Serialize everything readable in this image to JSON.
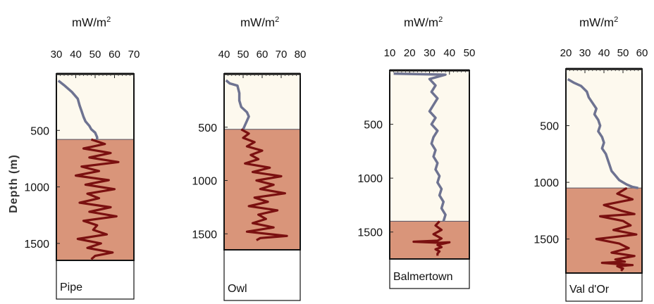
{
  "figure": {
    "y_axis_label": "Depth (m)",
    "unit": "mW/m",
    "unit_exp": "2"
  },
  "chart_data": [
    {
      "type": "line",
      "site": "Pipe",
      "xlabel": "mW/m2",
      "xlim": [
        30,
        70
      ],
      "xticks": [
        30,
        40,
        50,
        60,
        70
      ],
      "ylim": [
        0,
        1650
      ],
      "yticks": [
        500,
        1000,
        1500
      ],
      "y_inverted": true,
      "layer_boundary_depth": 580,
      "upper_series": {
        "x": [
          31,
          34,
          38,
          41,
          42,
          43,
          44,
          45,
          47,
          48,
          50,
          51,
          51
        ],
        "y": [
          60,
          100,
          160,
          220,
          280,
          330,
          380,
          420,
          460,
          490,
          520,
          560,
          580
        ]
      },
      "lower_series": {
        "x": [
          48,
          55,
          44,
          58,
          47,
          62,
          43,
          52,
          40,
          57,
          45,
          60,
          46,
          52,
          42,
          58,
          47,
          61,
          44,
          51,
          49,
          56,
          41,
          53,
          46,
          59,
          50,
          48
        ],
        "y": [
          580,
          620,
          660,
          700,
          740,
          780,
          820,
          860,
          900,
          940,
          980,
          1020,
          1060,
          1100,
          1140,
          1180,
          1220,
          1260,
          1300,
          1340,
          1380,
          1420,
          1460,
          1500,
          1540,
          1580,
          1610,
          1640
        ]
      },
      "colors": {
        "upper": "#6e7391",
        "lower": "#7a1010"
      }
    },
    {
      "type": "line",
      "site": "Owl",
      "xlabel": "mW/m2",
      "xlim": [
        40,
        80
      ],
      "xticks": [
        40,
        50,
        60,
        70,
        80
      ],
      "ylim": [
        0,
        1650
      ],
      "yticks": [
        500,
        1000,
        1500
      ],
      "y_inverted": true,
      "layer_boundary_depth": 520,
      "upper_series": {
        "x": [
          41,
          43,
          47,
          48,
          48,
          49,
          52,
          53,
          52,
          51,
          50
        ],
        "y": [
          60,
          90,
          110,
          180,
          250,
          310,
          360,
          400,
          440,
          480,
          520
        ]
      },
      "lower_series": {
        "x": [
          49,
          53,
          50,
          56,
          52,
          60,
          54,
          58,
          51,
          64,
          55,
          70,
          57,
          66,
          59,
          72,
          56,
          63,
          53,
          68,
          58,
          62,
          55,
          66,
          52,
          73,
          59,
          57
        ],
        "y": [
          520,
          560,
          600,
          640,
          680,
          720,
          760,
          800,
          840,
          880,
          920,
          960,
          1000,
          1040,
          1080,
          1120,
          1160,
          1200,
          1240,
          1280,
          1320,
          1360,
          1400,
          1440,
          1480,
          1520,
          1540,
          1560
        ]
      },
      "colors": {
        "upper": "#6e7391",
        "lower": "#7a1010"
      }
    },
    {
      "type": "line",
      "site": "Balmertown",
      "xlabel": "mW/m2",
      "xlim": [
        10,
        50
      ],
      "xticks": [
        10,
        20,
        30,
        40,
        50
      ],
      "ylim": [
        0,
        1750
      ],
      "yticks": [
        500,
        1000,
        1500
      ],
      "y_inverted": true,
      "layer_boundary_depth": 1400,
      "upper_series": {
        "x": [
          12,
          38,
          30,
          33,
          31,
          34,
          32,
          30,
          33,
          31,
          34,
          32,
          31,
          33,
          32,
          34,
          33,
          35,
          34,
          36,
          35,
          37,
          36,
          38,
          37
        ],
        "y": [
          30,
          40,
          80,
          140,
          200,
          260,
          320,
          380,
          440,
          500,
          560,
          620,
          680,
          740,
          800,
          860,
          920,
          980,
          1040,
          1100,
          1160,
          1220,
          1280,
          1340,
          1400
        ]
      },
      "lower_series": {
        "x": [
          35,
          33,
          36,
          32,
          36,
          34,
          22,
          35,
          40,
          34,
          36,
          33,
          35,
          34,
          34
        ],
        "y": [
          1400,
          1440,
          1480,
          1520,
          1560,
          1580,
          1590,
          1600,
          1595,
          1620,
          1640,
          1660,
          1680,
          1700,
          1720
        ]
      },
      "colors": {
        "upper": "#6e7391",
        "lower": "#7a1010"
      }
    },
    {
      "type": "line",
      "site": "Val d'Or",
      "xlabel": "mW/m2",
      "xlim": [
        20,
        60
      ],
      "xticks": [
        20,
        30,
        40,
        50,
        60
      ],
      "ylim": [
        0,
        1800
      ],
      "yticks": [
        500,
        1000,
        1500
      ],
      "y_inverted": true,
      "layer_boundary_depth": 1050,
      "upper_series": {
        "x": [
          21,
          24,
          28,
          31,
          32,
          34,
          36,
          35,
          37,
          38,
          37,
          39,
          40,
          39,
          41,
          42,
          43,
          44,
          46,
          48,
          50,
          52,
          55,
          58
        ],
        "y": [
          90,
          120,
          150,
          200,
          250,
          300,
          350,
          400,
          450,
          500,
          550,
          600,
          650,
          700,
          750,
          800,
          850,
          900,
          940,
          980,
          1000,
          1020,
          1040,
          1050
        ]
      },
      "lower_series": {
        "x": [
          52,
          47,
          55,
          40,
          49,
          56,
          38,
          50,
          54,
          45,
          57,
          36,
          48,
          53,
          44,
          56,
          46,
          51,
          39,
          55,
          47,
          50,
          49
        ],
        "y": [
          1050,
          1100,
          1150,
          1200,
          1250,
          1280,
          1300,
          1340,
          1380,
          1420,
          1460,
          1500,
          1540,
          1580,
          1620,
          1650,
          1680,
          1700,
          1710,
          1730,
          1740,
          1760,
          1780
        ]
      },
      "colors": {
        "upper": "#6e7391",
        "lower": "#7a1010"
      }
    }
  ],
  "style": {
    "upper_fill": "#fdf9ee",
    "lower_fill": "#d9957a",
    "frame": "#111111"
  }
}
